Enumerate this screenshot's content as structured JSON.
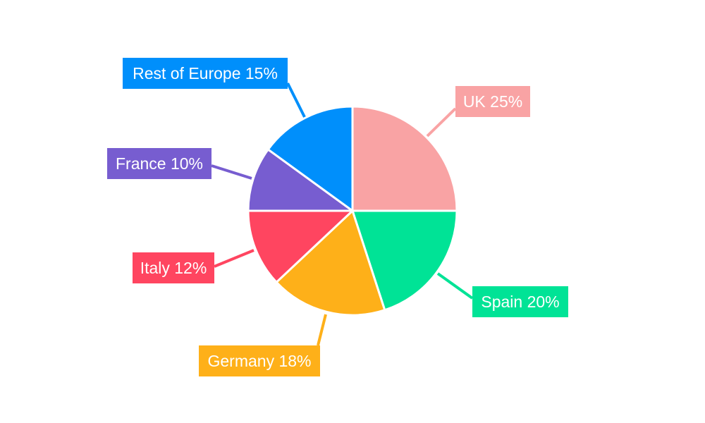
{
  "chart_data": {
    "type": "pie",
    "title": "",
    "start_angle": "top, clockwise",
    "categories": [
      "UK",
      "Spain",
      "Germany",
      "Italy",
      "France",
      "Rest of Europe"
    ],
    "values": [
      25,
      20,
      18,
      12,
      10,
      15
    ],
    "unit": "%",
    "labels": [
      "UK 25%",
      "Spain 20%",
      "Germany 18%",
      "Italy 12%",
      "France 10%",
      "Rest of Europe 15%"
    ],
    "colors": [
      "#F9A3A4",
      "#00E396",
      "#FEB019",
      "#FF4560",
      "#775DD0",
      "#008FFB"
    ],
    "legend": "none",
    "data_labels": "outside with leader lines"
  }
}
